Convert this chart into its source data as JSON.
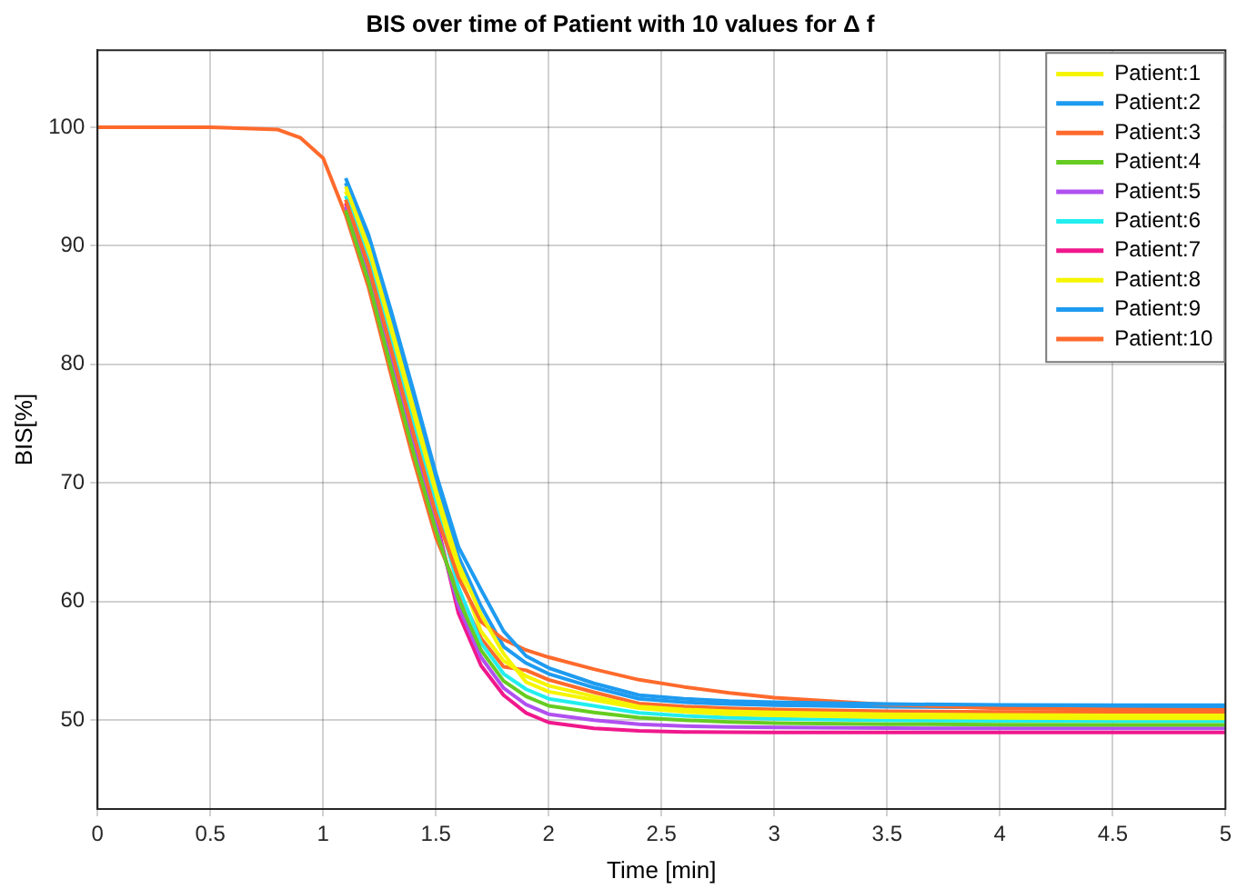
{
  "chart_data": {
    "type": "line",
    "title": "BIS over time of Patient with 10 values for Δ f",
    "xlabel": "Time [min]",
    "ylabel": "BIS[%]",
    "x": [
      1.1,
      1.2,
      1.3,
      1.4,
      1.5,
      1.6,
      1.7,
      1.8,
      1.9,
      2.0,
      2.2,
      2.4,
      2.6,
      2.8,
      3.0,
      3.5,
      4.0,
      4.5,
      5.0
    ],
    "xlim": [
      0,
      5
    ],
    "xticks": [
      0,
      0.5,
      1,
      1.5,
      2,
      2.5,
      3,
      3.5,
      4,
      4.5,
      5
    ],
    "ylim": [
      42.5,
      106.5
    ],
    "yticks": [
      50,
      60,
      70,
      80,
      90,
      100
    ],
    "grid": true,
    "legend": "top right",
    "marker": "none",
    "line_style": "solid",
    "series": [
      {
        "name": "Patient:1",
        "color": "#f5f500",
        "values": [
          95.0,
          90.0,
          83.3,
          76.4,
          69.4,
          63.2,
          58.9,
          55.6,
          53.2,
          52.4,
          51.7,
          51.0,
          50.7,
          50.5,
          50.4,
          50.25,
          50.18,
          50.15,
          50.15
        ]
      },
      {
        "name": "Patient:2",
        "color": "#1e9bf0",
        "values": [
          95.7,
          91.0,
          84.6,
          77.8,
          70.8,
          64.6,
          61.0,
          57.5,
          55.4,
          54.4,
          53.1,
          52.1,
          51.8,
          51.6,
          51.5,
          51.35,
          51.28,
          51.25,
          51.25
        ]
      },
      {
        "name": "Patient:3",
        "color": "#ff6a2c",
        "values": [
          93.9,
          88.4,
          81.4,
          74.2,
          67.4,
          62.0,
          58.3,
          56.8,
          55.9,
          55.3,
          54.3,
          53.4,
          52.8,
          52.3,
          51.9,
          51.3,
          51.0,
          50.9,
          50.85
        ]
      },
      {
        "name": "Patient:4",
        "color": "#66cc22",
        "values": [
          93.0,
          87.1,
          79.8,
          72.6,
          66.0,
          60.2,
          55.9,
          53.3,
          52.0,
          51.2,
          50.65,
          50.2,
          50.0,
          49.85,
          49.75,
          49.65,
          49.62,
          49.6,
          49.6
        ]
      },
      {
        "name": "Patient:5",
        "color": "#b050f0",
        "values": [
          93.3,
          87.6,
          80.4,
          73.2,
          66.5,
          59.6,
          55.3,
          52.7,
          51.3,
          50.5,
          50.0,
          49.65,
          49.5,
          49.42,
          49.38,
          49.32,
          49.3,
          49.3,
          49.3
        ]
      },
      {
        "name": "Patient:6",
        "color": "#22eeee",
        "values": [
          94.2,
          88.8,
          81.9,
          74.8,
          68.0,
          61.2,
          56.5,
          53.9,
          52.6,
          51.8,
          51.2,
          50.6,
          50.35,
          50.2,
          50.1,
          49.98,
          49.93,
          49.9,
          49.9
        ]
      },
      {
        "name": "Patient:7",
        "color": "#f0188c",
        "values": [
          93.6,
          88.0,
          80.9,
          73.7,
          67.0,
          59.0,
          54.6,
          52.1,
          50.6,
          49.8,
          49.3,
          49.1,
          49.0,
          48.98,
          48.95,
          48.95,
          48.95,
          48.95,
          48.95
        ]
      },
      {
        "name": "Patient:8",
        "color": "#f5f500",
        "values": [
          94.6,
          89.4,
          82.6,
          75.6,
          68.7,
          62.6,
          57.5,
          55.0,
          53.7,
          52.9,
          52.0,
          51.15,
          50.9,
          50.75,
          50.65,
          50.5,
          50.44,
          50.4,
          50.4
        ]
      },
      {
        "name": "Patient:9",
        "color": "#1e9bf0",
        "values": [
          95.3,
          90.4,
          83.8,
          77.0,
          70.0,
          63.8,
          59.6,
          56.2,
          54.8,
          53.9,
          52.75,
          51.8,
          51.5,
          51.35,
          51.25,
          51.12,
          51.07,
          51.05,
          51.05
        ]
      },
      {
        "name": "Patient:10",
        "color": "#ff6a2c",
        "x": [
          0,
          0.5,
          0.8,
          0.9,
          1.0,
          1.1,
          1.2,
          1.3,
          1.4,
          1.5,
          1.6,
          1.7,
          1.8,
          1.9,
          2.0,
          2.2,
          2.4,
          2.6,
          2.8,
          3.0,
          3.5,
          4.0,
          4.5,
          5.0
        ],
        "values": [
          100,
          100,
          99.8,
          99.1,
          97.4,
          92.6,
          86.6,
          79.2,
          72.0,
          65.4,
          60.8,
          56.9,
          54.5,
          54.2,
          53.4,
          52.35,
          51.4,
          51.15,
          51.0,
          50.9,
          50.75,
          50.68,
          50.65,
          50.65
        ]
      }
    ]
  }
}
